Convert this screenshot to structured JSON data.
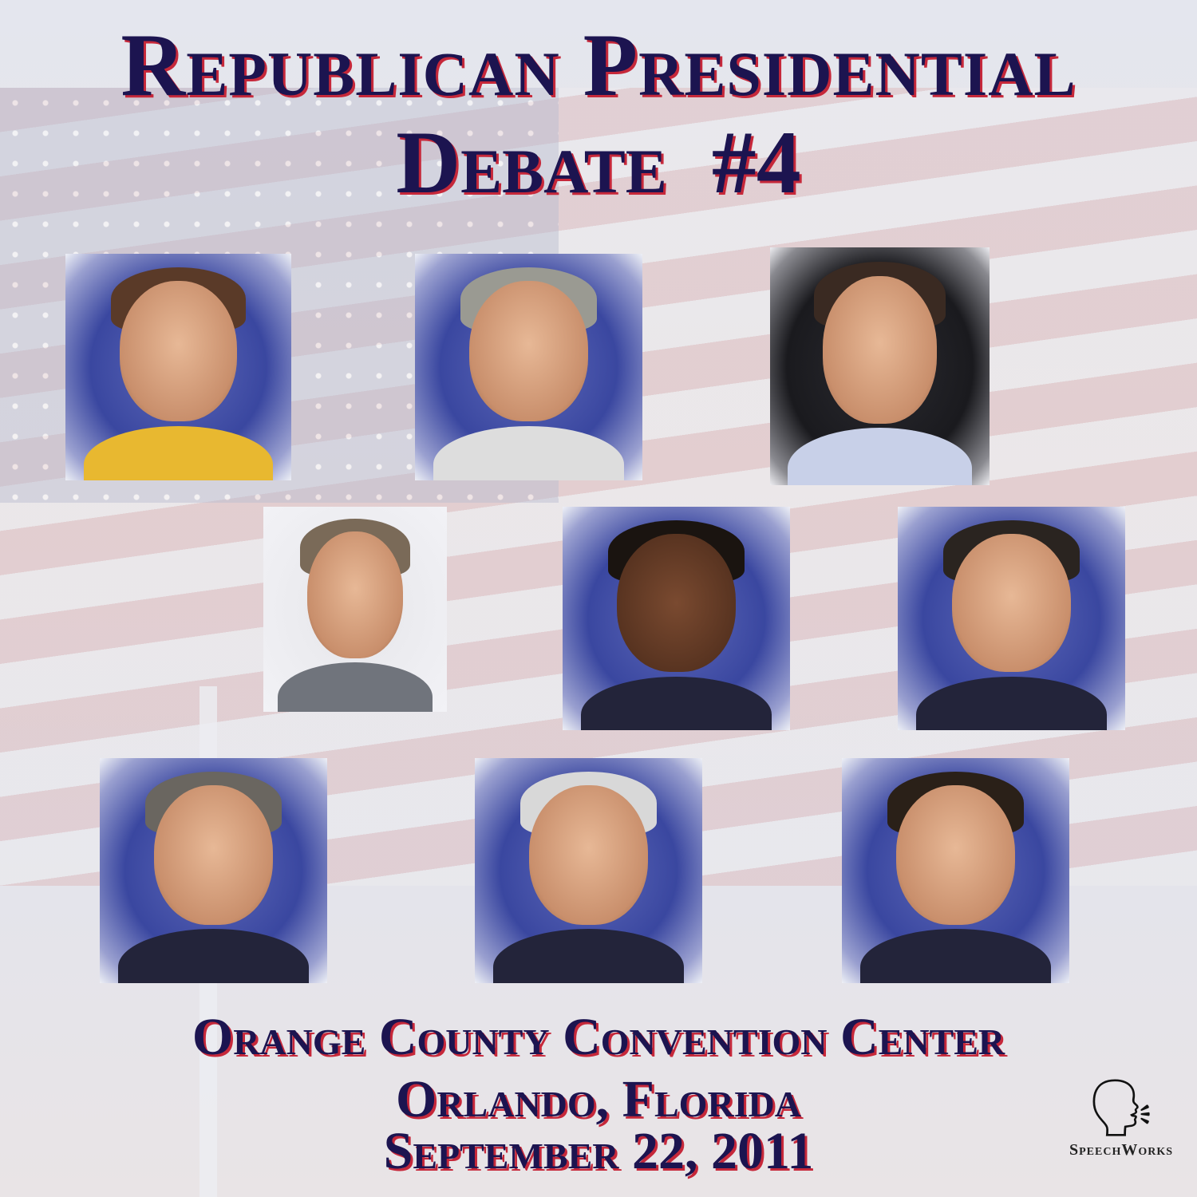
{
  "title": {
    "line1": "Republican Presidential",
    "line2": "Debate  #4"
  },
  "venue": {
    "line1": "Orange County Convention Center",
    "line2": "Orlando, Florida",
    "line3": "September 22, 2011"
  },
  "logo": {
    "text": "SpeechWorks",
    "icon": "speaking-head-icon"
  },
  "colors": {
    "title_text": "#1c1450",
    "title_shadow": "#c6283a",
    "photo_background": "#3a47a0"
  },
  "photos": {
    "count": 9
  }
}
